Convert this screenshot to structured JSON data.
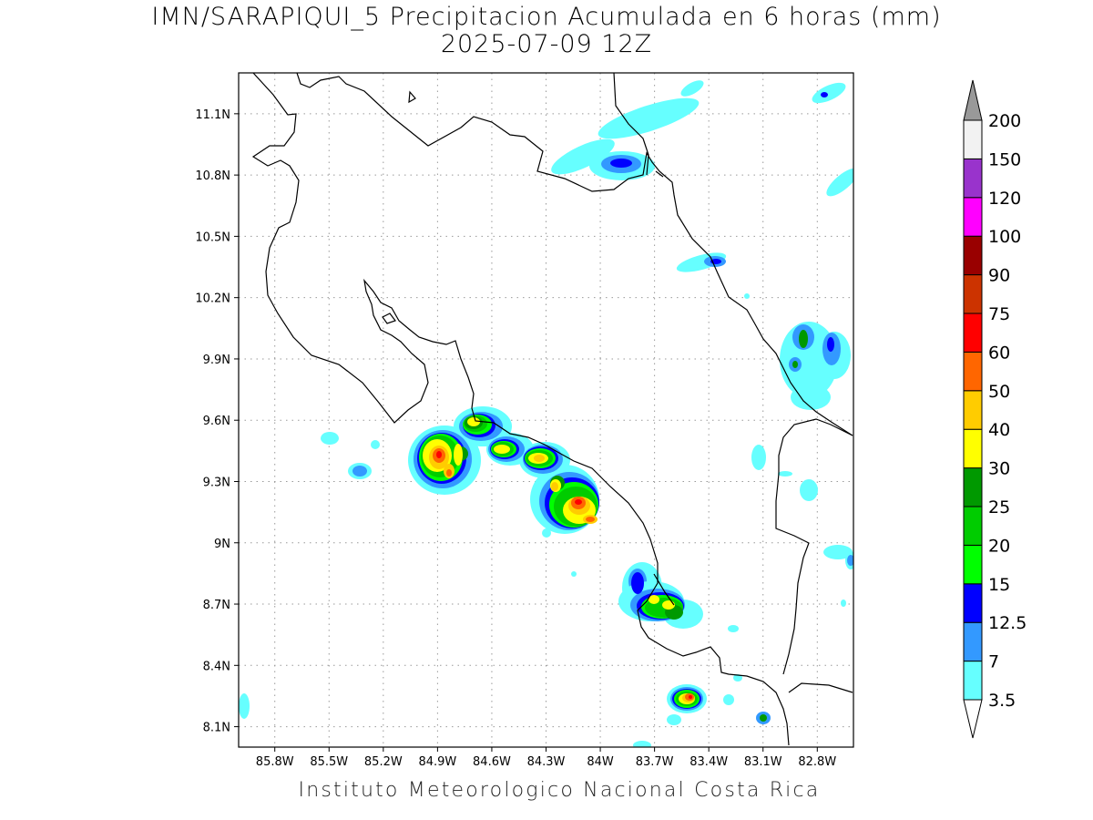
{
  "title": {
    "line1": "IMN/SARAPIQUI_5 Precipitacion Acumulada en 6 horas (mm)",
    "line2": "2025-07-09 12Z"
  },
  "credit": "Instituto Meteorologico Nacional Costa Rica",
  "map": {
    "lon_range": [
      -86.0,
      -82.6
    ],
    "lat_range": [
      8.0,
      11.3
    ],
    "lon_ticks": [
      {
        "value": -85.8,
        "label": "85.8W"
      },
      {
        "value": -85.5,
        "label": "85.5W"
      },
      {
        "value": -85.2,
        "label": "85.2W"
      },
      {
        "value": -84.9,
        "label": "84.9W"
      },
      {
        "value": -84.6,
        "label": "84.6W"
      },
      {
        "value": -84.3,
        "label": "84.3W"
      },
      {
        "value": -84.0,
        "label": "84W"
      },
      {
        "value": -83.7,
        "label": "83.7W"
      },
      {
        "value": -83.4,
        "label": "83.4W"
      },
      {
        "value": -83.1,
        "label": "83.1W"
      },
      {
        "value": -82.8,
        "label": "82.8W"
      }
    ],
    "lat_ticks": [
      {
        "value": 8.1,
        "label": "8.1N"
      },
      {
        "value": 8.4,
        "label": "8.4N"
      },
      {
        "value": 8.7,
        "label": "8.7N"
      },
      {
        "value": 9.0,
        "label": "9N"
      },
      {
        "value": 9.3,
        "label": "9.3N"
      },
      {
        "value": 9.6,
        "label": "9.6N"
      },
      {
        "value": 9.9,
        "label": "9.9N"
      },
      {
        "value": 10.2,
        "label": "10.2N"
      },
      {
        "value": 10.5,
        "label": "10.5N"
      },
      {
        "value": 10.8,
        "label": "10.8N"
      },
      {
        "value": 11.1,
        "label": "11.1N"
      }
    ],
    "grid": "dotted",
    "coastlines": true
  },
  "colorbar": {
    "levels": [
      "3.5",
      "7",
      "12.5",
      "15",
      "20",
      "25",
      "30",
      "40",
      "50",
      "60",
      "75",
      "90",
      "100",
      "120",
      "150",
      "200"
    ],
    "colors": [
      "#66ffff",
      "#3399ff",
      "#0000ff",
      "#00ff00",
      "#00cc00",
      "#009900",
      "#ffff00",
      "#ffcc00",
      "#ff6600",
      "#ff0000",
      "#cc3300",
      "#990000",
      "#ff00ff",
      "#9933cc",
      "#f2f2f2",
      "#999999"
    ],
    "below_color": "#ffffff",
    "above_color": "#999999"
  },
  "precip_cells": [
    {
      "lon": -84.85,
      "lat": 9.38,
      "rx": 0.15,
      "ry": 0.12,
      "max": "high"
    },
    {
      "lon": -84.65,
      "lat": 9.56,
      "rx": 0.1,
      "ry": 0.07,
      "max": "mid"
    },
    {
      "lon": -84.46,
      "lat": 9.45,
      "rx": 0.08,
      "ry": 0.06,
      "max": "mid"
    },
    {
      "lon": -84.26,
      "lat": 9.4,
      "rx": 0.12,
      "ry": 0.07,
      "max": "mid"
    },
    {
      "lon": -84.16,
      "lat": 9.27,
      "rx": 0.08,
      "ry": 0.08,
      "max": "mid"
    },
    {
      "lon": -84.06,
      "lat": 9.15,
      "rx": 0.13,
      "ry": 0.09,
      "max": "high"
    },
    {
      "lon": -83.6,
      "lat": 8.71,
      "rx": 0.15,
      "ry": 0.07,
      "max": "mid"
    },
    {
      "lon": -83.43,
      "lat": 8.25,
      "rx": 0.09,
      "ry": 0.05,
      "max": "high"
    },
    {
      "lon": -82.85,
      "lat": 9.97,
      "rx": 0.08,
      "ry": 0.15,
      "max": "low"
    },
    {
      "lon": -82.68,
      "lat": 9.93,
      "rx": 0.07,
      "ry": 0.12,
      "max": "low"
    },
    {
      "lon": -83.75,
      "lat": 10.85,
      "rx": 0.14,
      "ry": 0.06,
      "max": "low"
    }
  ]
}
